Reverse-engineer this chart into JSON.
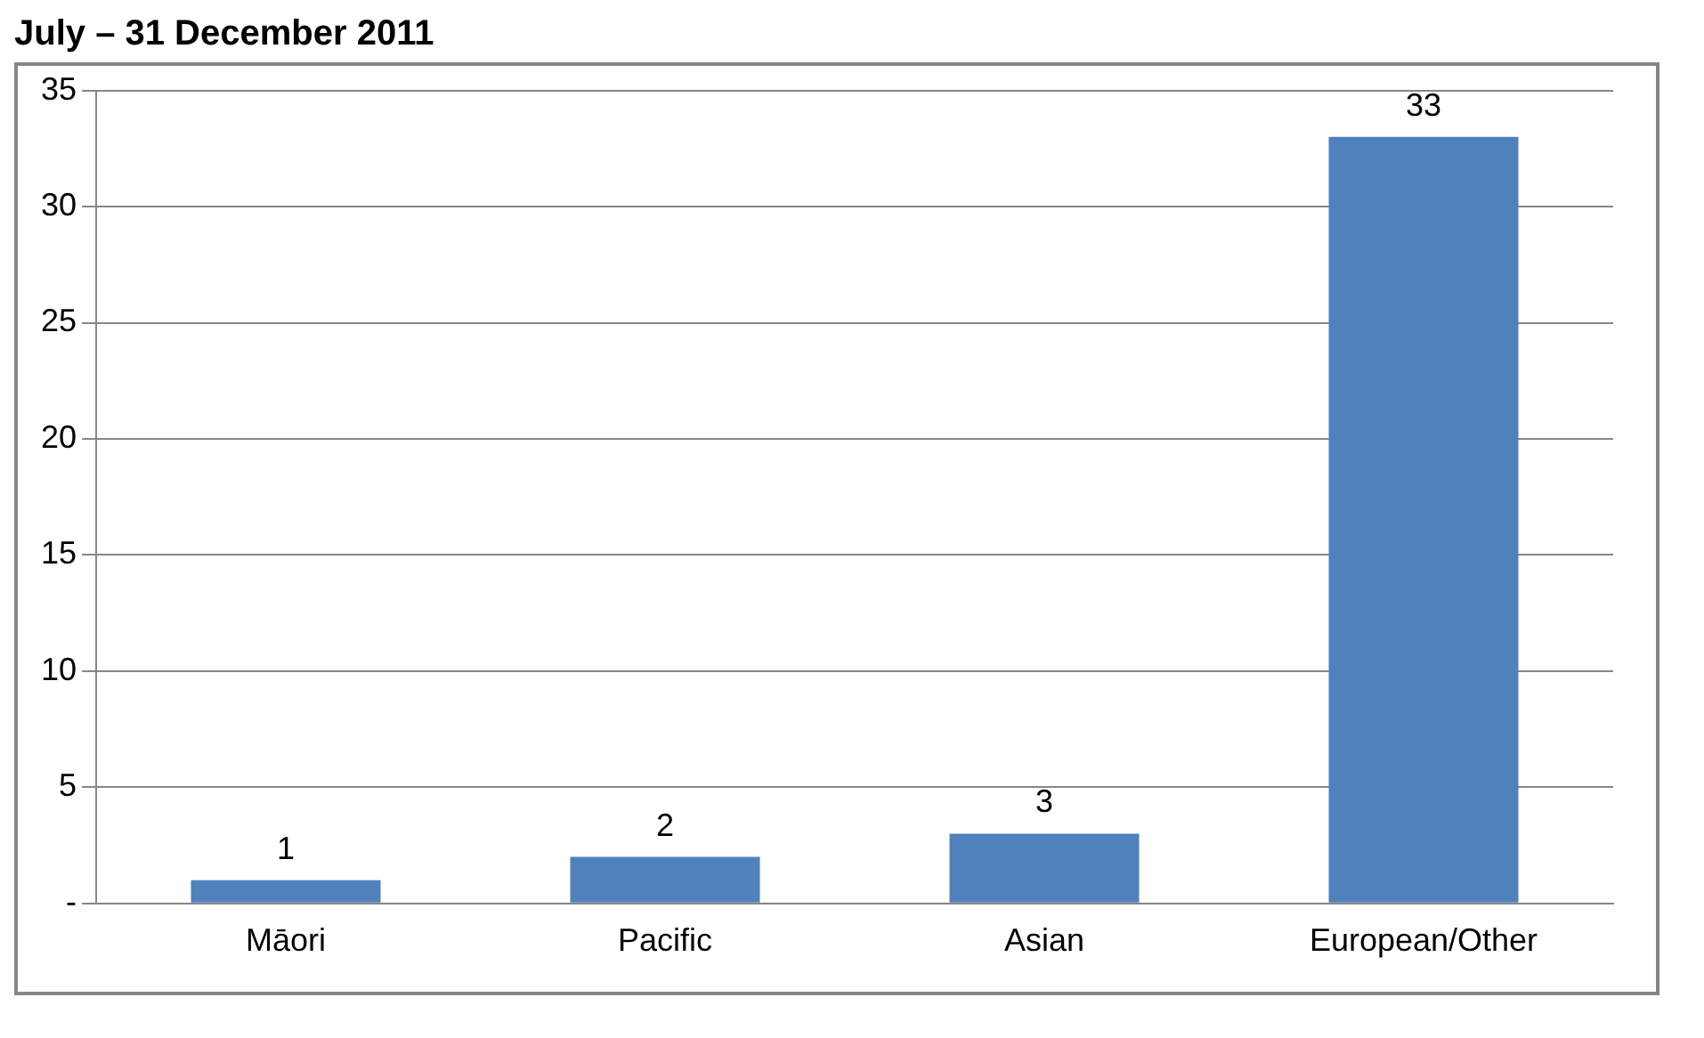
{
  "chart_data": {
    "type": "bar",
    "title": "July – 31 December 2011",
    "categories": [
      "Māori",
      "Pacific",
      "Asian",
      "European/Other"
    ],
    "values": [
      1,
      2,
      3,
      33
    ],
    "color": "#4f81bd",
    "ylim": [
      0,
      35
    ],
    "yticks": [
      {
        "value": 0,
        "label": "-"
      },
      5,
      10,
      15,
      20,
      25,
      30,
      35
    ],
    "grid": "y",
    "data_labels": true,
    "legend": false
  }
}
